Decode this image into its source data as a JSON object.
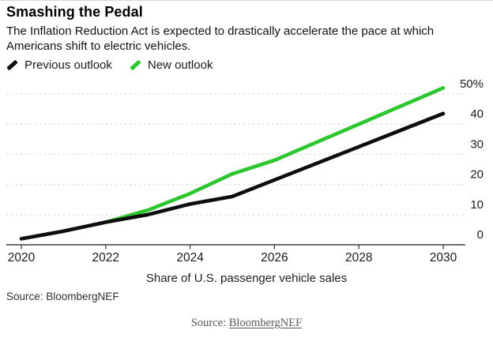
{
  "header": {
    "title": "Smashing the Pedal",
    "subtitle": "The Inflation Reduction Act is expected to drastically accelerate the pace at which Americans shift to electric vehicles."
  },
  "legend": [
    {
      "label": "Previous outlook",
      "color": "#0d0d0d"
    },
    {
      "label": "New outlook",
      "color": "#2cc62e"
    }
  ],
  "colors": {
    "previous_outlook": "#0d0d0d",
    "new_outlook": "#2cc62e",
    "gridline": "#d9d9d9",
    "axis": "#3e3e3e",
    "tick_text": "#1a1a1a"
  },
  "chart_data": {
    "type": "line",
    "title": "Smashing the Pedal",
    "subtitle": "The Inflation Reduction Act is expected to drastically accelerate the pace at which Americans shift to electric vehicles.",
    "xlabel": "Share of U.S. passenger vehicle sales",
    "ylabel": "",
    "ylim": [
      0,
      52
    ],
    "xlim": [
      2020,
      2030
    ],
    "grid": "horizontal-dashed",
    "legend_position": "top-left",
    "yticks": [
      {
        "value": 0,
        "label": "0"
      },
      {
        "value": 10,
        "label": "10"
      },
      {
        "value": 20,
        "label": "20"
      },
      {
        "value": 30,
        "label": "30"
      },
      {
        "value": 40,
        "label": "40"
      },
      {
        "value": 50,
        "label": "50%"
      }
    ],
    "xticks": [
      {
        "value": 2020,
        "label": "2020"
      },
      {
        "value": 2022,
        "label": "2022"
      },
      {
        "value": 2024,
        "label": "2024"
      },
      {
        "value": 2026,
        "label": "2026"
      },
      {
        "value": 2028,
        "label": "2028"
      },
      {
        "value": 2030,
        "label": "2030"
      }
    ],
    "series": [
      {
        "name": "Previous outlook",
        "color": "#0d0d0d",
        "x": [
          2020,
          2021,
          2022,
          2023,
          2024,
          2025,
          2026,
          2027,
          2028,
          2029,
          2030
        ],
        "values": [
          2,
          4.5,
          7.5,
          10,
          13.5,
          16,
          21.5,
          27,
          32.5,
          38,
          43.5
        ]
      },
      {
        "name": "New outlook",
        "color": "#2cc62e",
        "x": [
          2022,
          2023,
          2024,
          2025,
          2026,
          2027,
          2028,
          2029,
          2030
        ],
        "values": [
          7.5,
          11.5,
          17,
          23.5,
          28,
          34,
          40,
          46,
          52
        ]
      }
    ]
  },
  "footer": {
    "axis_caption": "Share of U.S. passenger vehicle sales",
    "source": "Source: BloombergNEF",
    "caption_prefix": "Source: ",
    "caption_link": "BloombergNEF"
  }
}
